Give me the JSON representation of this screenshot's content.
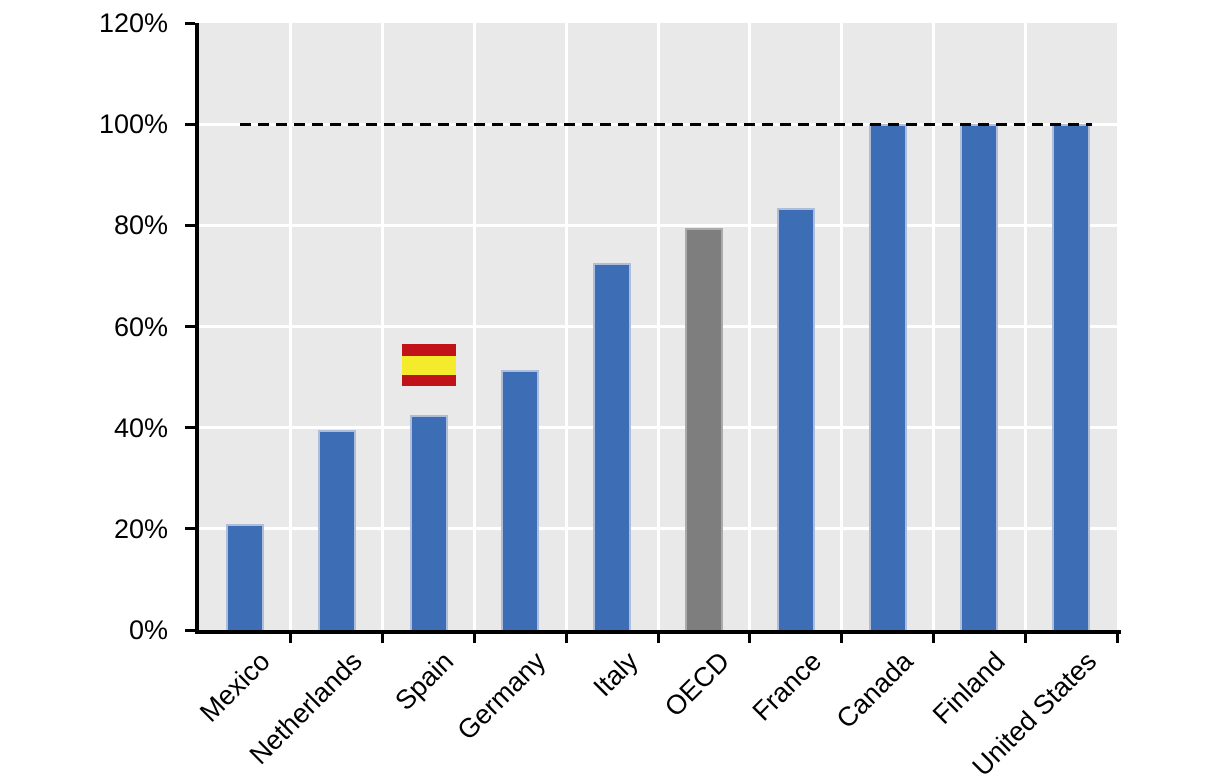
{
  "chart_data": {
    "type": "bar",
    "title": "",
    "xlabel": "",
    "ylabel": "",
    "categories": [
      "Mexico",
      "Netherlands",
      "Spain",
      "Germany",
      "Italy",
      "OECD",
      "France",
      "Canada",
      "Finland",
      "United States"
    ],
    "values": [
      21,
      39.5,
      42.5,
      51.5,
      72.5,
      79.5,
      83.5,
      100,
      100,
      100
    ],
    "unit": "percent",
    "ylim": [
      0,
      120
    ],
    "y_tick_step": 20,
    "y_tick_labels": [
      "0%",
      "20%",
      "40%",
      "60%",
      "80%",
      "100%",
      "120%"
    ],
    "grid": "on",
    "legend": "none",
    "plot_background": "#E9E9E9",
    "gridline_color": "#FFFFFF",
    "axis_color": "#000000",
    "bar_color": "#3D6DB5",
    "bar_edge_color": "#AEBDD9",
    "highlight_bar": {
      "category": "OECD",
      "color": "#7E7E7E",
      "edge_color": "#ABABAB"
    },
    "reference_line": {
      "value": 100,
      "style": "dashed",
      "color": "#000000"
    },
    "annotations": [
      {
        "type": "flag-icon",
        "country": "Spain",
        "over_category": "Spain",
        "stripe_colors": [
          "#C1121A",
          "#F5EB2D",
          "#C1121A"
        ]
      }
    ]
  }
}
